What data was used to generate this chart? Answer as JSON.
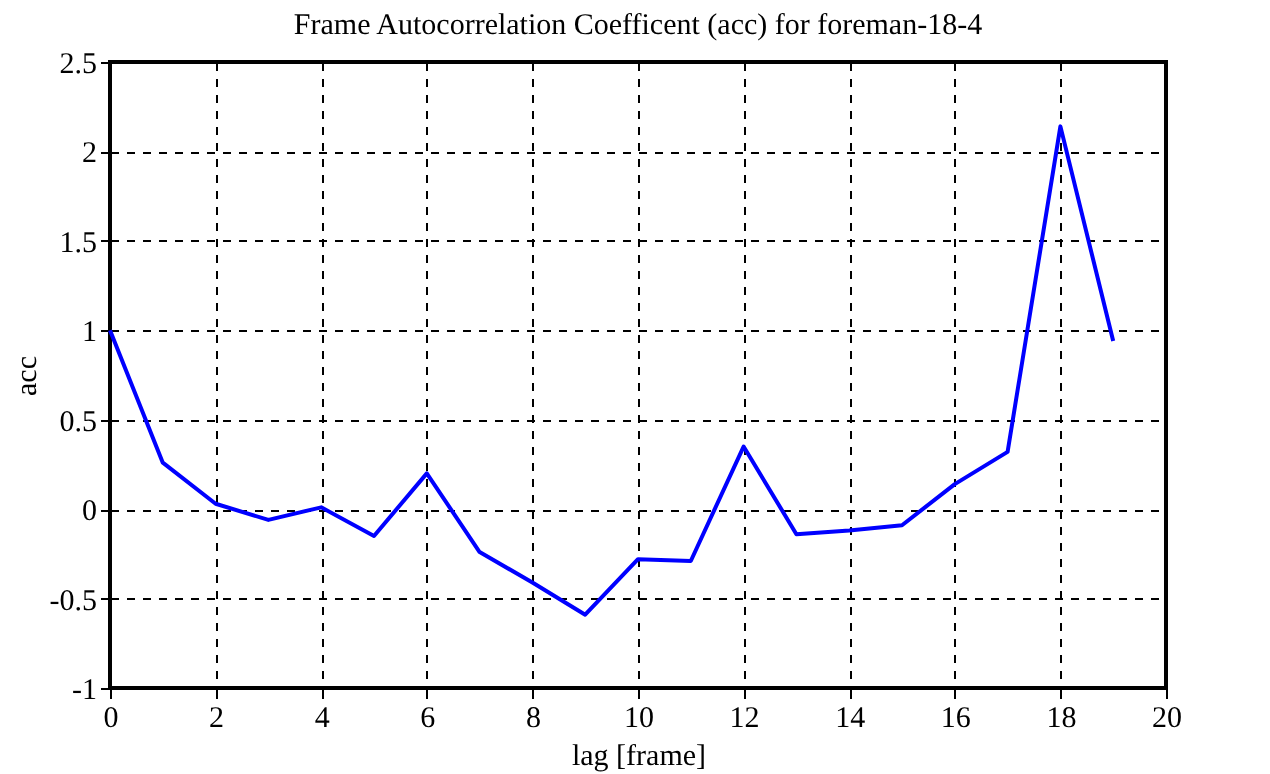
{
  "chart_data": {
    "type": "line",
    "title": "Frame Autocorrelation Coefficent (acc) for foreman-18-4",
    "xlabel": "lag [frame]",
    "ylabel": "acc",
    "x": [
      0,
      1,
      2,
      3,
      4,
      5,
      6,
      7,
      8,
      9,
      10,
      11,
      12,
      13,
      14,
      15,
      16,
      17,
      18,
      19
    ],
    "series": [
      {
        "color": "#0000ff",
        "values": [
          1.0,
          0.26,
          0.03,
          -0.06,
          0.01,
          -0.15,
          0.2,
          -0.24,
          -0.41,
          -0.59,
          -0.28,
          -0.29,
          0.35,
          -0.14,
          -0.12,
          -0.09,
          0.14,
          0.32,
          2.14,
          0.94
        ]
      }
    ],
    "xlim": [
      0,
      20
    ],
    "xticks": [
      0,
      2,
      4,
      6,
      8,
      10,
      12,
      14,
      16,
      18,
      20
    ],
    "ylim": [
      -1,
      2.5
    ],
    "yticks": [
      -1,
      -0.5,
      0,
      0.5,
      1,
      1.5,
      2,
      2.5
    ],
    "grid": true,
    "legend": false,
    "marker": "none",
    "line_style": "solid"
  }
}
